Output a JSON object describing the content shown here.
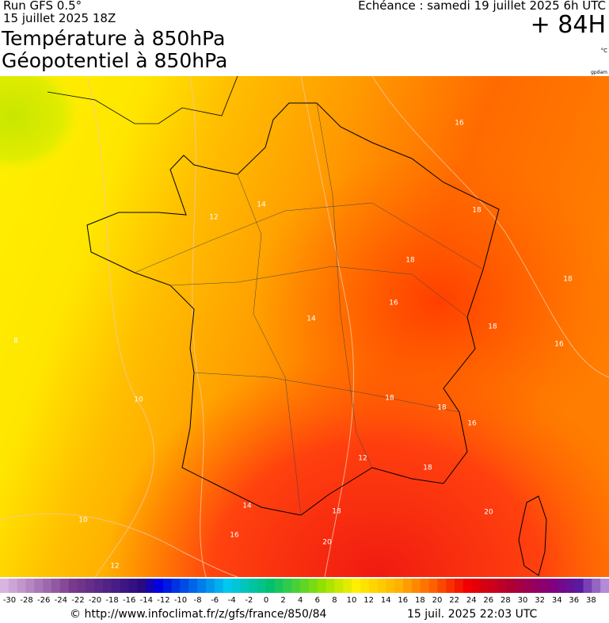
{
  "header": {
    "run": "Run GFS 0.5°",
    "run_date": "15 juillet 2025 18Z",
    "title_line1": "Température à 850hPa",
    "title_line2": "Géopotentiel à 850hPa",
    "forecast_time": "Echéance : samedi 19 juillet 2025 6h UTC",
    "lead_time": "+ 84H",
    "unit": "°C",
    "geopotential_unit": "gpdam"
  },
  "map": {
    "contour_labels": [
      16,
      18,
      18,
      18,
      18,
      16,
      12,
      14,
      14,
      16,
      18,
      18,
      16,
      12,
      18,
      8,
      10,
      10,
      12,
      14,
      16,
      18,
      20,
      20
    ]
  },
  "colorbar": {
    "labels": [
      -30,
      -28,
      -26,
      -24,
      -22,
      -20,
      -18,
      -16,
      -14,
      -12,
      -10,
      -8,
      -6,
      -4,
      -2,
      0,
      2,
      4,
      6,
      8,
      10,
      12,
      14,
      16,
      18,
      20,
      22,
      24,
      26,
      28,
      30,
      32,
      34,
      36,
      38
    ]
  },
  "footer": {
    "source": "© http://www.infoclimat.fr/z/gfs/france/850/84",
    "generated": "15 juil. 2025 22:03 UTC"
  }
}
